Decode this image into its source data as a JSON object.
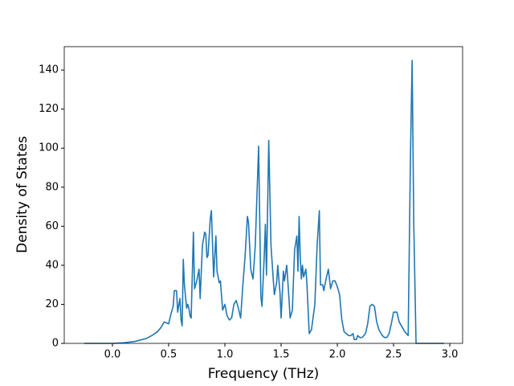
{
  "chart_data": {
    "type": "line",
    "x_label": "Frequency (THz)",
    "y_label": "Density of States",
    "x": [
      -0.25,
      -0.1,
      0,
      0.1,
      0.2,
      0.3,
      0.35,
      0.4,
      0.43,
      0.46,
      0.48,
      0.5,
      0.52,
      0.54,
      0.55,
      0.57,
      0.58,
      0.6,
      0.61,
      0.62,
      0.63,
      0.64,
      0.66,
      0.67,
      0.68,
      0.69,
      0.7,
      0.72,
      0.73,
      0.75,
      0.77,
      0.78,
      0.8,
      0.82,
      0.83,
      0.84,
      0.85,
      0.87,
      0.88,
      0.9,
      0.92,
      0.93,
      0.95,
      0.96,
      0.98,
      1.0,
      1.02,
      1.04,
      1.06,
      1.08,
      1.1,
      1.12,
      1.14,
      1.16,
      1.18,
      1.2,
      1.21,
      1.23,
      1.25,
      1.27,
      1.3,
      1.32,
      1.33,
      1.35,
      1.36,
      1.37,
      1.39,
      1.41,
      1.43,
      1.44,
      1.46,
      1.47,
      1.49,
      1.5,
      1.52,
      1.53,
      1.55,
      1.57,
      1.58,
      1.6,
      1.62,
      1.64,
      1.65,
      1.66,
      1.67,
      1.68,
      1.69,
      1.7,
      1.72,
      1.73,
      1.75,
      1.77,
      1.8,
      1.82,
      1.84,
      1.85,
      1.86,
      1.87,
      1.88,
      1.9,
      1.92,
      1.94,
      1.96,
      1.98,
      2.0,
      2.02,
      2.04,
      2.06,
      2.08,
      2.1,
      2.12,
      2.14,
      2.15,
      2.17,
      2.18,
      2.2,
      2.22,
      2.25,
      2.27,
      2.29,
      2.31,
      2.33,
      2.35,
      2.37,
      2.4,
      2.42,
      2.44,
      2.46,
      2.48,
      2.5,
      2.53,
      2.55,
      2.58,
      2.6,
      2.63,
      2.65,
      2.665,
      2.68,
      2.7,
      2.95
    ],
    "series": [
      {
        "color": "#1f77b4",
        "values": [
          0,
          0,
          0,
          0.3,
          1,
          2.5,
          4,
          6,
          8,
          11,
          10.5,
          10,
          15,
          19,
          27,
          27,
          16,
          23,
          12,
          9,
          43,
          30,
          18,
          20,
          18,
          14,
          13,
          57,
          28,
          32,
          38,
          23,
          50,
          57,
          56,
          44,
          45,
          64,
          68,
          34,
          55,
          37,
          31,
          32,
          17,
          20,
          14,
          12,
          13,
          20,
          22,
          18,
          13,
          30,
          45,
          65,
          62,
          38,
          33,
          50,
          101,
          24,
          19,
          45,
          61,
          35,
          104,
          50,
          33,
          25,
          31,
          40,
          26,
          13,
          37,
          32,
          40,
          23,
          13,
          17,
          48,
          55,
          37,
          65,
          45,
          33,
          40,
          34,
          38,
          30,
          5,
          7,
          20,
          50,
          68,
          30,
          30,
          30,
          27,
          33,
          38,
          28,
          32,
          32,
          29,
          25,
          12,
          6,
          5,
          4,
          4,
          5,
          2,
          2,
          4,
          3,
          3,
          5,
          10,
          19,
          20,
          19,
          11,
          7,
          4,
          3,
          3,
          5,
          10,
          16,
          16,
          11,
          8,
          6,
          4,
          95,
          145,
          60,
          0,
          0
        ]
      }
    ],
    "xlim": [
      -0.4286,
      3.114
    ],
    "ylim": [
      0,
      152
    ],
    "xticks": [
      {
        "value": 0,
        "label": "0.0"
      },
      0.5,
      {
        "value": 1,
        "label": "1.0"
      },
      1.5,
      {
        "value": 2,
        "label": "2.0"
      },
      2.5,
      {
        "value": 3,
        "label": "3.0"
      }
    ],
    "yticks": [
      0,
      20,
      40,
      60,
      80,
      100,
      120,
      140
    ]
  }
}
